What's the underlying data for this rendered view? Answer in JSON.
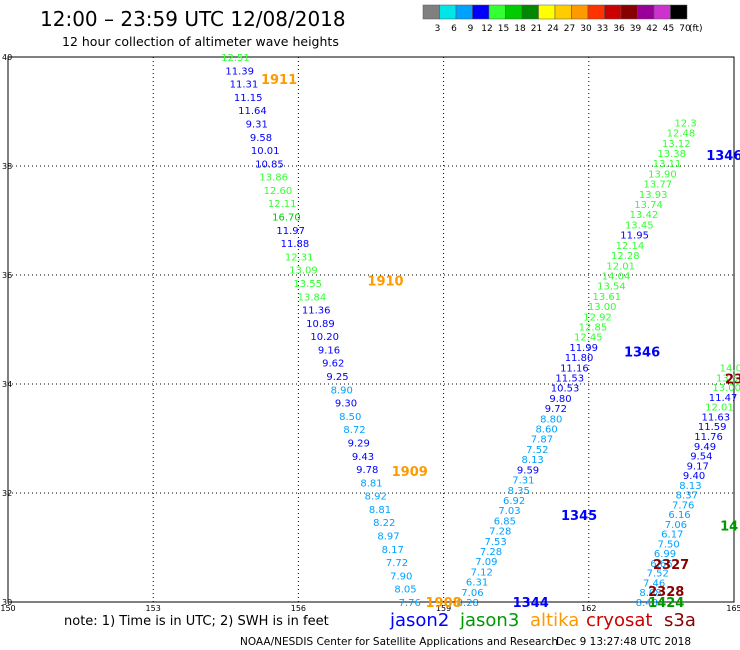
{
  "header": {
    "title": "12:00 – 23:59 UTC 12/08/2018",
    "subtitle": "12 hour collection of altimeter wave heights"
  },
  "legend": {
    "unit": "(ft)",
    "bins": [
      {
        "label": "3",
        "color": "#808080"
      },
      {
        "label": "6",
        "color": "#00e5e5"
      },
      {
        "label": "9",
        "color": "#00a2ff"
      },
      {
        "label": "12",
        "color": "#0000ff"
      },
      {
        "label": "15",
        "color": "#33ff33"
      },
      {
        "label": "18",
        "color": "#00cc00"
      },
      {
        "label": "21",
        "color": "#008800"
      },
      {
        "label": "24",
        "color": "#ffff00"
      },
      {
        "label": "27",
        "color": "#ffcc00"
      },
      {
        "label": "30",
        "color": "#ff9900"
      },
      {
        "label": "33",
        "color": "#ff3300"
      },
      {
        "label": "36",
        "color": "#cc0000"
      },
      {
        "label": "39",
        "color": "#880000"
      },
      {
        "label": "42",
        "color": "#990099"
      },
      {
        "label": "45",
        "color": "#cc33cc"
      },
      {
        "label": "70",
        "color": "#000000"
      }
    ]
  },
  "footer": {
    "note": "note:  1) Time is in UTC; 2) SWH is in feet",
    "satellites": [
      {
        "name": "jason2",
        "color": "#0000ff"
      },
      {
        "name": "jason3",
        "color": "#009900"
      },
      {
        "name": "altika",
        "color": "#ff9900"
      },
      {
        "name": "cryosat",
        "color": "#cc0000"
      },
      {
        "name": "s3a",
        "color": "#880000"
      }
    ],
    "credit": "NOAA/NESDIS Center for Satellite Applications and Research",
    "timestamp": "Dec  9 13:27:48 UTC 2018"
  },
  "chart_data": {
    "type": "scatter",
    "xlim": [
      150,
      165
    ],
    "ylim": [
      30,
      40
    ],
    "xticks": [
      "150",
      "153",
      "156",
      "159",
      "162",
      "165"
    ],
    "yticks": [
      "30",
      "32",
      "34",
      "36",
      "38",
      "40"
    ],
    "grid": true,
    "passes": [
      {
        "label": "1911",
        "lon": 155.6,
        "lat": 39.6
      },
      {
        "label": "1910",
        "lon": 157.8,
        "lat": 35.9
      },
      {
        "label": "1909",
        "lon": 158.3,
        "lat": 32.4
      },
      {
        "label": "1908",
        "lon": 159.0,
        "lat": 30.0
      },
      {
        "label": "1344",
        "lon": 160.8,
        "lat": 30.0
      },
      {
        "label": "1345",
        "lon": 161.8,
        "lat": 31.6
      },
      {
        "label": "1346",
        "lon": 163.1,
        "lat": 34.6
      },
      {
        "label": "1346",
        "lon": 164.8,
        "lat": 38.2
      },
      {
        "label": "2327",
        "lon": 163.7,
        "lat": 30.7
      },
      {
        "label": "2328",
        "lon": 163.6,
        "lat": 30.2
      },
      {
        "label": "1424",
        "lon": 163.6,
        "lat": 30.0
      },
      {
        "label": "14",
        "lon": 164.9,
        "lat": 31.4
      },
      {
        "label": "23",
        "lon": 165.0,
        "lat": 34.1
      }
    ],
    "tracks": [
      {
        "start": [
          154.7,
          40.0
        ],
        "end": [
          158.3,
          30.0
        ],
        "values": [
          "12.51",
          "11.39",
          "11.31",
          "11.15",
          "11.64",
          "9.31",
          "9.58",
          "10.01",
          "10.85",
          "13.86",
          "12.60",
          "12.11",
          "16.70",
          "11.97",
          "11.88",
          "12.31",
          "13.09",
          "13.55",
          "13.84",
          "11.36",
          "10.89",
          "10.20",
          "9.16",
          "9.62",
          "9.25",
          "8.90",
          "9.30",
          "8.50",
          "8.72",
          "9.29",
          "9.43",
          "9.78",
          "8.81",
          "8.92",
          "8.81",
          "8.22",
          "8.97",
          "8.17",
          "7.72",
          "7.90",
          "8.05",
          "7.76"
        ]
      },
      {
        "start": [
          159.5,
          30.0
        ],
        "end": [
          164.0,
          38.8
        ],
        "values": [
          "8.28",
          "7.06",
          "6.31",
          "7.12",
          "7.09",
          "7.28",
          "7.53",
          "7.28",
          "6.85",
          "7.03",
          "6.92",
          "8.35",
          "7.31",
          "9.59",
          "8.13",
          "7.52",
          "7.87",
          "8.60",
          "8.80",
          "9.72",
          "9.80",
          "10.53",
          "11.53",
          "11.16",
          "11.80",
          "11.99",
          "12.45",
          "12.85",
          "12.92",
          "13.00",
          "13.61",
          "13.54",
          "14.04",
          "12.01",
          "12.28",
          "12.14",
          "11.95",
          "13.45",
          "13.42",
          "13.74",
          "13.93",
          "13.77",
          "13.90",
          "13.11",
          "13.38",
          "13.12",
          "12.48",
          "12.3"
        ]
      },
      {
        "start": [
          163.2,
          30.0
        ],
        "end": [
          165.0,
          34.3
        ],
        "values": [
          "8.48",
          "8.08",
          "7.46",
          "7.52",
          "6.66",
          "6.99",
          "7.50",
          "6.17",
          "7.06",
          "6.16",
          "7.76",
          "8.37",
          "8.13",
          "9.40",
          "9.17",
          "9.54",
          "9.49",
          "11.76",
          "11.59",
          "11.63",
          "12.01",
          "11.47",
          "13.00",
          "13.55",
          "14.04"
        ]
      }
    ]
  }
}
